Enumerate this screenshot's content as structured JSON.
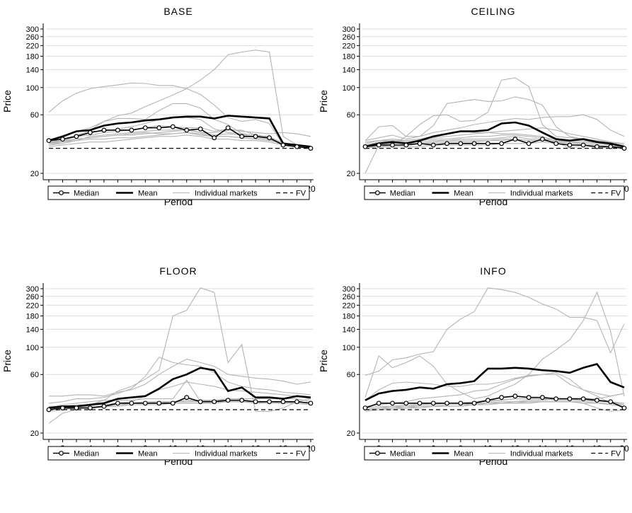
{
  "chart_data": [
    {
      "type": "line",
      "title": "BASE",
      "xlabel": "Period",
      "ylabel": "Price",
      "xlim": [
        1,
        20
      ],
      "ylim": [
        20,
        300
      ],
      "yscale": "log",
      "x_ticks": [
        "2",
        "4",
        "6",
        "8",
        "10",
        "12",
        "14",
        "16",
        "18",
        "20"
      ],
      "y_ticks": [
        "20",
        "60",
        "100",
        "140",
        "180",
        "220",
        "260",
        "300"
      ],
      "grid": "horizontal",
      "legend": [
        "Median",
        "Mean",
        "Individual markets",
        "FV"
      ],
      "legend_position": "bottom",
      "fv": 32,
      "x": [
        1,
        2,
        3,
        4,
        5,
        6,
        7,
        8,
        9,
        10,
        11,
        12,
        13,
        14,
        15,
        16,
        17,
        18,
        19,
        20
      ],
      "median": [
        37,
        38,
        40,
        43,
        45,
        45,
        45,
        47,
        47,
        48,
        45,
        46,
        39,
        47,
        40,
        40,
        39,
        34,
        33,
        32
      ],
      "mean": [
        37,
        40,
        44,
        45,
        49,
        51,
        52,
        54,
        55,
        57,
        58,
        58,
        56,
        59,
        58,
        57,
        56,
        35,
        34,
        33
      ],
      "individual_markets": [
        [
          63,
          78,
          90,
          98,
          102,
          105,
          109,
          108,
          104,
          104,
          98,
          88,
          72,
          57,
          53,
          55,
          51,
          34,
          33,
          32
        ],
        [
          35,
          39,
          44,
          47,
          53,
          59,
          62,
          70,
          78,
          87,
          98,
          115,
          140,
          185,
          195,
          202,
          195,
          40,
          34,
          32
        ],
        [
          35,
          37,
          40,
          45,
          53,
          56,
          56,
          55,
          65,
          74,
          74,
          68,
          55,
          50,
          42,
          39,
          38,
          34,
          33,
          32
        ],
        [
          36,
          38,
          41,
          44,
          44,
          46,
          48,
          51,
          55,
          57,
          57,
          55,
          46,
          43,
          42,
          41,
          38,
          34,
          33,
          32
        ],
        [
          35,
          37,
          40,
          41,
          43,
          44,
          45,
          47,
          49,
          48,
          47,
          47,
          44,
          46,
          44,
          43,
          42,
          43,
          42,
          40
        ],
        [
          34,
          35,
          37,
          40,
          41,
          42,
          43,
          44,
          45,
          45,
          46,
          43,
          43,
          45,
          45,
          41,
          40,
          35,
          34,
          33
        ],
        [
          33,
          34,
          35,
          36,
          36,
          37,
          38,
          39,
          40,
          40,
          41,
          40,
          38,
          38,
          37,
          37,
          36,
          34,
          33,
          32
        ],
        [
          34,
          36,
          37,
          38,
          38,
          39,
          39,
          40,
          41,
          42,
          43,
          41,
          40,
          40,
          39,
          38,
          37,
          35,
          34,
          33
        ],
        [
          35,
          36,
          38,
          39,
          40,
          41,
          42,
          43,
          42,
          42,
          43,
          42,
          40,
          40,
          39,
          38,
          37,
          35,
          34,
          33
        ],
        [
          36,
          37,
          38,
          39,
          40,
          41,
          41,
          42,
          43,
          44,
          45,
          43,
          41,
          42,
          41,
          40,
          38,
          35,
          33,
          32
        ]
      ]
    },
    {
      "type": "line",
      "title": "CEILING",
      "xlabel": "Period",
      "ylabel": "Price",
      "xlim": [
        1,
        20
      ],
      "ylim": [
        20,
        300
      ],
      "yscale": "log",
      "x_ticks": [
        "2",
        "4",
        "6",
        "8",
        "10",
        "12",
        "14",
        "16",
        "18",
        "20"
      ],
      "y_ticks": [
        "20",
        "60",
        "100",
        "140",
        "180",
        "220",
        "260",
        "300"
      ],
      "grid": "horizontal",
      "legend": [
        "Median",
        "Mean",
        "Individual markets",
        "FV"
      ],
      "legend_position": "bottom",
      "fv": 32,
      "x": [
        1,
        2,
        3,
        4,
        5,
        6,
        7,
        8,
        9,
        10,
        11,
        12,
        13,
        14,
        15,
        16,
        17,
        18,
        19,
        20
      ],
      "median": [
        33,
        34,
        34,
        34,
        35,
        34,
        35,
        35,
        35,
        35,
        35,
        38,
        35,
        38,
        35,
        34,
        34,
        33,
        33,
        32
      ],
      "mean": [
        33,
        35,
        36,
        35,
        37,
        40,
        42,
        44,
        44,
        45,
        51,
        52,
        49,
        43,
        38,
        37,
        38,
        36,
        35,
        33
      ],
      "individual_markets": [
        [
          37,
          48,
          49,
          40,
          40,
          49,
          74,
          77,
          80,
          77,
          78,
          84,
          80,
          72,
          48,
          40,
          38,
          36,
          34,
          32
        ],
        [
          20,
          34,
          34,
          40,
          50,
          59,
          60,
          53,
          54,
          63,
          115,
          120,
          102,
          50,
          40,
          39,
          38,
          37,
          36,
          34
        ],
        [
          37,
          39,
          41,
          38,
          40,
          43,
          45,
          47,
          50,
          52,
          54,
          56,
          55,
          57,
          58,
          58,
          60,
          55,
          45,
          40
        ],
        [
          36,
          37,
          38,
          37,
          38,
          39,
          40,
          41,
          42,
          43,
          44,
          45,
          46,
          47,
          45,
          42,
          40,
          38,
          36,
          35
        ],
        [
          34,
          36,
          37,
          37,
          38,
          40,
          42,
          44,
          43,
          43,
          42,
          42,
          41,
          40,
          36,
          32,
          34,
          33,
          33,
          32
        ],
        [
          33,
          34,
          35,
          36,
          36,
          37,
          37,
          37,
          37,
          37,
          38,
          38,
          37,
          37,
          36,
          36,
          35,
          34,
          33,
          32
        ],
        [
          32,
          33,
          33,
          33,
          33,
          34,
          34,
          34,
          34,
          34,
          35,
          35,
          35,
          36,
          35,
          34,
          34,
          32,
          33,
          32
        ],
        [
          35,
          37,
          37,
          36,
          37,
          38,
          38,
          39,
          40,
          40,
          41,
          41,
          40,
          39,
          38,
          37,
          37,
          35,
          34,
          33
        ],
        [
          34,
          35,
          36,
          35,
          35,
          36,
          37,
          38,
          38,
          38,
          39,
          40,
          38,
          38,
          37,
          36,
          36,
          35,
          34,
          33
        ],
        [
          33,
          33,
          34,
          34,
          35,
          35,
          36,
          36,
          36,
          37,
          37,
          38,
          37,
          37,
          36,
          35,
          35,
          34,
          33,
          33
        ]
      ]
    },
    {
      "type": "line",
      "title": "FLOOR",
      "xlabel": "Period",
      "ylabel": "Price",
      "xlim": [
        1,
        20
      ],
      "ylim": [
        20,
        300
      ],
      "yscale": "log",
      "x_ticks": [
        "2",
        "4",
        "6",
        "8",
        "10",
        "12",
        "14",
        "16",
        "18",
        "20"
      ],
      "y_ticks": [
        "20",
        "60",
        "100",
        "140",
        "180",
        "220",
        "260",
        "300"
      ],
      "grid": "horizontal",
      "legend": [
        "Median",
        "Mean",
        "Individual markets",
        "FV"
      ],
      "legend_position": "bottom",
      "fv": 31,
      "x": [
        1,
        2,
        3,
        4,
        5,
        6,
        7,
        8,
        9,
        10,
        11,
        12,
        13,
        14,
        15,
        16,
        17,
        18,
        19,
        20
      ],
      "median": [
        31,
        32,
        32,
        32,
        33,
        35,
        35,
        35,
        35,
        35,
        39,
        36,
        36,
        37,
        37,
        36,
        36,
        36,
        36,
        35
      ],
      "mean": [
        32,
        33,
        33,
        34,
        35,
        38,
        39,
        40,
        46,
        55,
        60,
        68,
        65,
        44,
        47,
        39,
        39,
        38,
        40,
        39
      ],
      "individual_markets": [
        [
          40,
          40,
          41,
          41,
          40,
          43,
          45,
          50,
          60,
          70,
          80,
          75,
          70,
          60,
          58,
          56,
          55,
          53,
          50,
          52
        ],
        [
          24,
          29,
          31,
          34,
          37,
          44,
          48,
          55,
          65,
          180,
          200,
          305,
          280,
          75,
          105,
          30,
          30,
          32,
          36,
          38
        ],
        [
          35,
          36,
          38,
          38,
          39,
          42,
          46,
          58,
          83,
          75,
          72,
          70,
          62,
          52,
          48,
          46,
          45,
          43,
          42,
          41
        ],
        [
          31,
          32,
          33,
          33,
          33,
          35,
          36,
          40,
          45,
          48,
          52,
          50,
          48,
          45,
          44,
          43,
          42,
          41,
          40,
          38
        ],
        [
          32,
          34,
          35,
          36,
          37,
          37,
          37,
          38,
          38,
          38,
          54,
          36,
          36,
          36,
          36,
          35,
          36,
          36,
          35,
          34
        ],
        [
          33,
          33,
          33,
          34,
          34,
          35,
          35,
          36,
          36,
          36,
          36,
          37,
          37,
          37,
          37,
          36,
          36,
          36,
          36,
          35
        ],
        [
          32,
          33,
          34,
          34,
          34,
          35,
          35,
          35,
          36,
          36,
          37,
          37,
          37,
          38,
          38,
          38,
          38,
          38,
          38,
          36
        ],
        [
          33,
          33,
          32,
          32,
          33,
          34,
          34,
          34,
          34,
          35,
          35,
          35,
          35,
          36,
          36,
          36,
          36,
          35,
          35,
          34
        ],
        [
          31,
          32,
          32,
          33,
          33,
          34,
          35,
          35,
          35,
          36,
          36,
          36,
          37,
          37,
          37,
          36,
          36,
          36,
          35,
          34
        ],
        [
          30,
          31,
          32,
          32,
          33,
          33,
          34,
          34,
          34,
          35,
          35,
          35,
          35,
          36,
          36,
          35,
          35,
          35,
          35,
          34
        ]
      ]
    },
    {
      "type": "line",
      "title": "INFO",
      "xlabel": "Period",
      "ylabel": "Price",
      "xlim": [
        1,
        20
      ],
      "ylim": [
        20,
        300
      ],
      "yscale": "log",
      "x_ticks": [
        "2",
        "4",
        "6",
        "8",
        "10",
        "12",
        "14",
        "16",
        "18",
        "20"
      ],
      "y_ticks": [
        "20",
        "60",
        "100",
        "140",
        "180",
        "220",
        "260",
        "300"
      ],
      "grid": "horizontal",
      "legend": [
        "Median",
        "Mean",
        "Individual markets",
        "FV"
      ],
      "legend_position": "bottom",
      "fv": 31,
      "x": [
        1,
        2,
        3,
        4,
        5,
        6,
        7,
        8,
        9,
        10,
        11,
        12,
        13,
        14,
        15,
        16,
        17,
        18,
        19,
        20
      ],
      "median": [
        32,
        35,
        35,
        35,
        35,
        35,
        35,
        35,
        35,
        37,
        39,
        40,
        39,
        39,
        38,
        38,
        38,
        37,
        36,
        32
      ],
      "mean": [
        37,
        42,
        44,
        45,
        47,
        46,
        50,
        51,
        53,
        67,
        67,
        68,
        67,
        65,
        64,
        62,
        68,
        73,
        52,
        47
      ],
      "individual_markets": [
        [
          59,
          64,
          79,
          82,
          88,
          92,
          140,
          170,
          195,
          305,
          295,
          280,
          255,
          225,
          205,
          175,
          175,
          165,
          90,
          155
        ],
        [
          39,
          85,
          68,
          75,
          85,
          70,
          50,
          43,
          38,
          40,
          45,
          50,
          60,
          80,
          95,
          115,
          165,
          280,
          135,
          40
        ],
        [
          37,
          45,
          51,
          52,
          51,
          50,
          48,
          48,
          50,
          50,
          52,
          56,
          59,
          60,
          62,
          55,
          45,
          40,
          35,
          33
        ],
        [
          33,
          34,
          35,
          36,
          38,
          39,
          40,
          41,
          44,
          45,
          50,
          55,
          58,
          60,
          60,
          50,
          45,
          42,
          40,
          42
        ],
        [
          31,
          32,
          33,
          33,
          34,
          34,
          35,
          35,
          36,
          36,
          37,
          38,
          38,
          38,
          37,
          37,
          37,
          36,
          36,
          35
        ],
        [
          32,
          33,
          33,
          34,
          34,
          35,
          35,
          35,
          36,
          37,
          37,
          38,
          38,
          38,
          38,
          38,
          37,
          37,
          36,
          34
        ],
        [
          31,
          32,
          32,
          32,
          33,
          33,
          34,
          34,
          34,
          35,
          35,
          36,
          36,
          36,
          36,
          36,
          35,
          32,
          30,
          31
        ],
        [
          31,
          31,
          32,
          32,
          33,
          33,
          34,
          34,
          35,
          35,
          36,
          36,
          37,
          37,
          38,
          38,
          38,
          38,
          40,
          42
        ],
        [
          31,
          32,
          32,
          33,
          33,
          33,
          34,
          34,
          34,
          35,
          35,
          35,
          36,
          36,
          36,
          36,
          36,
          35,
          35,
          34
        ],
        [
          30,
          31,
          31,
          32,
          32,
          33,
          33,
          33,
          34,
          34,
          35,
          35,
          35,
          36,
          36,
          36,
          35,
          35,
          34,
          33
        ]
      ]
    }
  ]
}
